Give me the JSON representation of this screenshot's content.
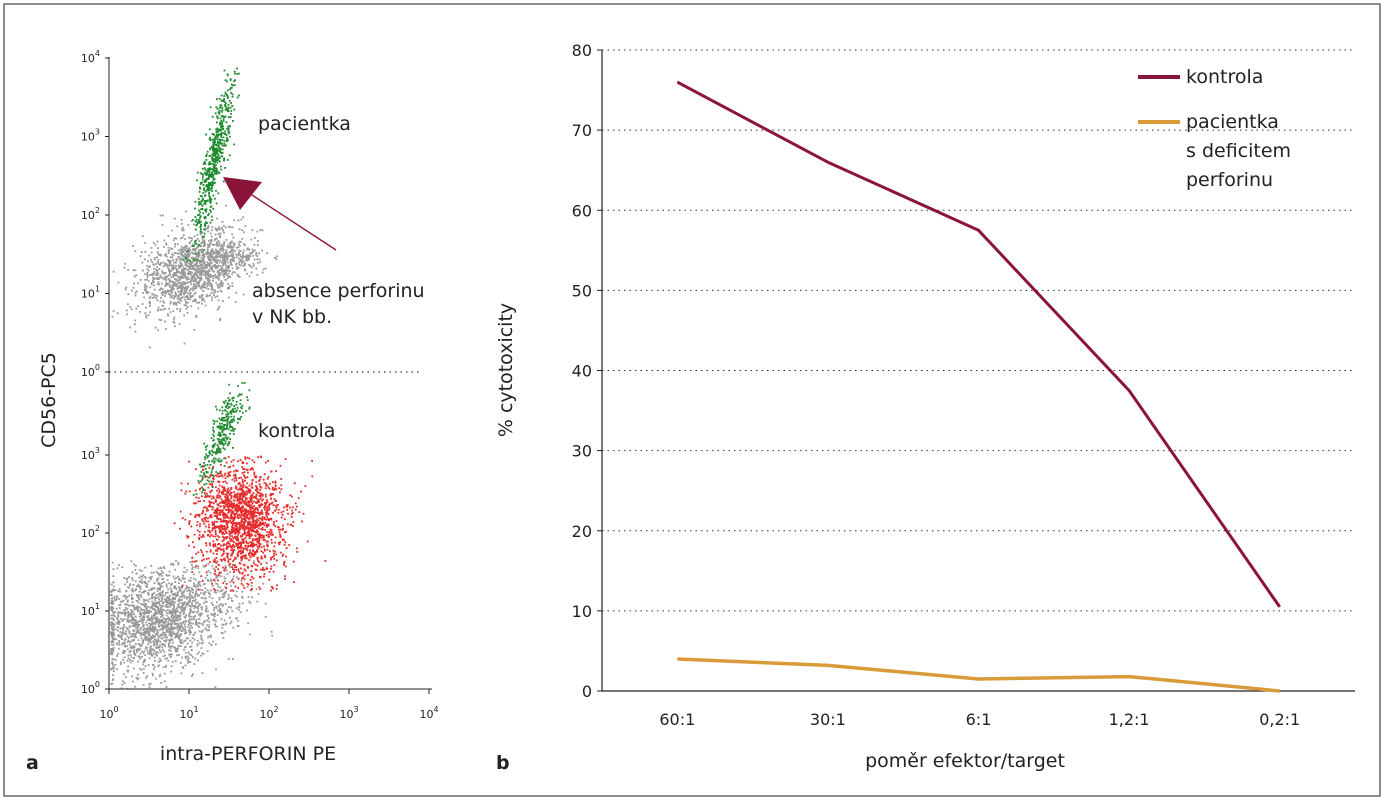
{
  "colors": {
    "gray": "#999999",
    "green": "#1e8a2e",
    "red": "#e52a2a",
    "kontrola": "#8b1538",
    "pacientka": "#d99a3a",
    "grid": "#333333"
  },
  "chart_data": [
    {
      "type": "scatter",
      "panel_label": "a",
      "xlabel": "intra-PERFORIN PE",
      "ylabel": "CD56-PC5",
      "x_scale": "log",
      "y_scale": "log",
      "xlim": [
        1,
        10000
      ],
      "ylim": [
        1,
        10000
      ],
      "x_ticks": [
        {
          "base": "10",
          "exp": "0"
        },
        {
          "base": "10",
          "exp": "1"
        },
        {
          "base": "10",
          "exp": "2"
        },
        {
          "base": "10",
          "exp": "3"
        },
        {
          "base": "10",
          "exp": "4"
        }
      ],
      "top_y_ticks": [
        {
          "base": "10",
          "exp": "4"
        },
        {
          "base": "10",
          "exp": "3"
        },
        {
          "base": "10",
          "exp": "2"
        },
        {
          "base": "10",
          "exp": "1"
        },
        {
          "base": "10",
          "exp": "0"
        }
      ],
      "bottom_y_ticks": [
        {
          "base": "10",
          "exp": "3"
        },
        {
          "base": "10",
          "exp": "2"
        },
        {
          "base": "10",
          "exp": "1"
        },
        {
          "base": "10",
          "exp": "0"
        }
      ],
      "subplots": [
        {
          "label": "pacientka",
          "annotation_lines": [
            "absence perforinu",
            "v NK bb."
          ],
          "populations": [
            {
              "color": "gray",
              "center_x": 10,
              "center_y": 20
            },
            {
              "color": "green",
              "center_x": 20,
              "center_y": 500
            }
          ]
        },
        {
          "label": "kontrola",
          "populations": [
            {
              "color": "gray",
              "center_x": 4,
              "center_y": 8
            },
            {
              "color": "green",
              "center_x": 25,
              "center_y": 1800
            },
            {
              "color": "red",
              "center_x": 45,
              "center_y": 150
            }
          ]
        }
      ]
    },
    {
      "type": "line",
      "panel_label": "b",
      "xlabel": "poměr efektor/target",
      "ylabel": "% cytotoxicity",
      "categories": [
        "60:1",
        "30:1",
        "6:1",
        "1,2:1",
        "0,2:1"
      ],
      "ylim": [
        0,
        80
      ],
      "y_ticks": [
        "0",
        "10",
        "20",
        "30",
        "40",
        "50",
        "60",
        "70",
        "80"
      ],
      "grid": "dotted horizontal",
      "legend_position": "top-right",
      "series": [
        {
          "name": "kontrola",
          "color": "kontrola",
          "values": [
            76,
            66,
            57.5,
            37.5,
            10.5
          ]
        },
        {
          "name": "pacientka s deficitem perforinu",
          "name_lines": [
            "pacientka",
            "s deficitem",
            "perforinu"
          ],
          "color": "pacientka",
          "values": [
            4,
            3.2,
            1.5,
            1.8,
            0
          ]
        }
      ]
    }
  ]
}
